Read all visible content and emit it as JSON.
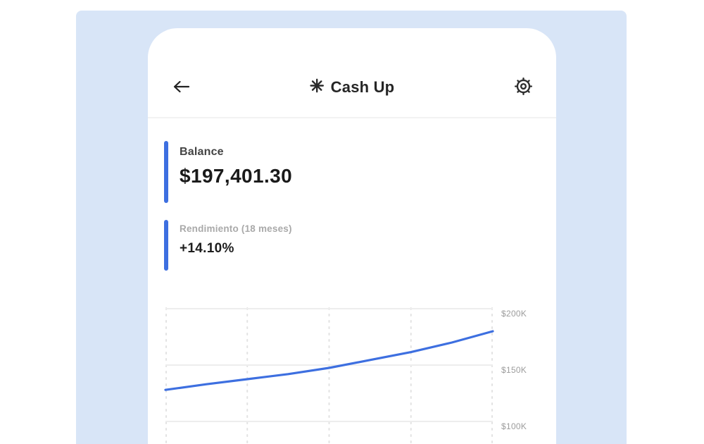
{
  "colors": {
    "page_bg": "#ffffff",
    "panel_bg": "#d8e5f7",
    "card_bg": "#ffffff",
    "accent_blue": "#3d6fe0",
    "line_blue": "#3d6fe0",
    "text_dark": "#1a1a1a",
    "label_gray": "#a9a9a9",
    "tick_gray": "#9c9c9c"
  },
  "header": {
    "back_icon": "arrow-left-icon",
    "logo_icon": "asterisk-snowflake-icon",
    "title": "Cash Up",
    "settings_icon": "gear-icon"
  },
  "balance": {
    "label": "Balance",
    "value": "$197,401.30"
  },
  "performance": {
    "label": "Rendimiento (18 meses)",
    "value": "+14.10%"
  },
  "chart_data": {
    "type": "line",
    "title": "",
    "xlabel": "",
    "ylabel": "",
    "x": [
      0,
      1,
      2,
      3,
      4,
      5,
      6,
      7,
      8
    ],
    "series": [
      {
        "name": "Balance",
        "values_usd_k": [
          128,
          133,
          137.5,
          142,
          147.5,
          154.5,
          161.5,
          170,
          180
        ]
      }
    ],
    "y_tick_labels": [
      "$200K",
      "$150K",
      "$100K"
    ],
    "y_tick_values_usd_k": [
      200,
      150,
      100
    ],
    "y_axis_position": "right",
    "x_tick_labels_visible": false,
    "grid": "dashed-vertical-solid-horizontal",
    "legend": "none",
    "line_color": "#3d6fe0"
  }
}
